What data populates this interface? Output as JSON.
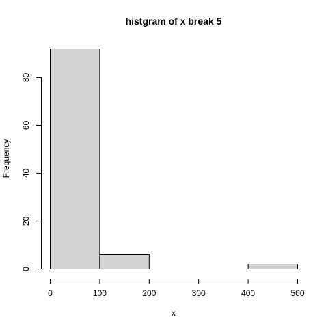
{
  "chart_data": {
    "type": "bar",
    "title": "histgram of x break 5",
    "xlabel": "x",
    "ylabel": "Frequency",
    "bins": [
      {
        "from": 0,
        "to": 100,
        "count": 92
      },
      {
        "from": 100,
        "to": 200,
        "count": 6
      },
      {
        "from": 200,
        "to": 300,
        "count": 0
      },
      {
        "from": 300,
        "to": 400,
        "count": 0
      },
      {
        "from": 400,
        "to": 500,
        "count": 2
      }
    ],
    "xlim": [
      0,
      500
    ],
    "ylim": [
      0,
      92
    ],
    "x_ticks": [
      0,
      100,
      200,
      300,
      400,
      500
    ],
    "y_ticks": [
      0,
      20,
      40,
      60,
      80
    ],
    "bar_fill": "#d3d3d3",
    "bar_stroke": "#000000",
    "grid": false,
    "legend": "none"
  }
}
